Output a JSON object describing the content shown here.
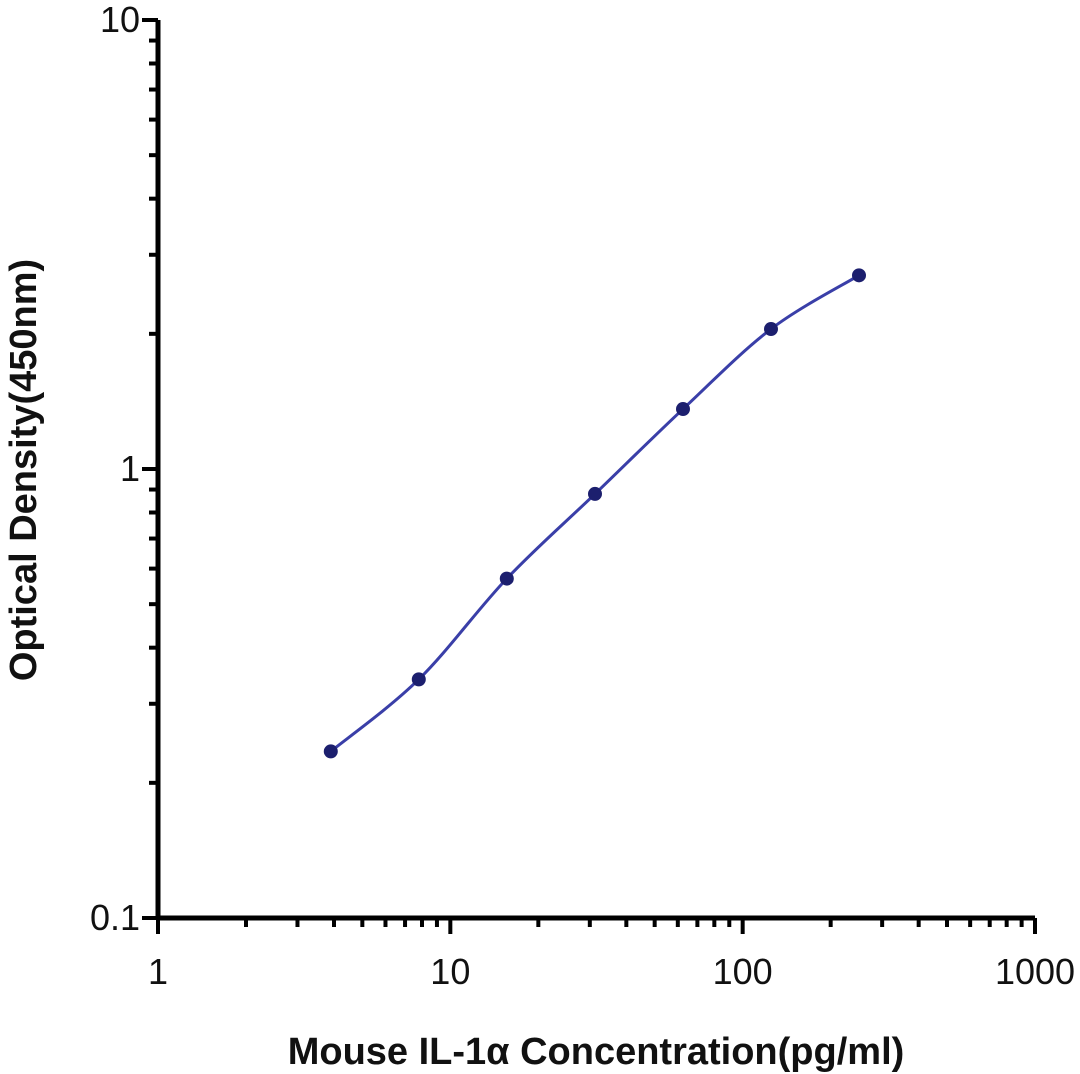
{
  "chart_data": {
    "type": "line",
    "title": "",
    "xlabel": "Mouse IL-1α Concentration(pg/ml)",
    "ylabel": "Optical Density(450nm)",
    "x_scale": "log",
    "y_scale": "log",
    "xlim": [
      1,
      1000
    ],
    "ylim": [
      0.1,
      10
    ],
    "x_ticks": [
      "1",
      "10",
      "100",
      "1000"
    ],
    "y_ticks": [
      "0.1",
      "1",
      "10"
    ],
    "grid": false,
    "legend": "none",
    "series": [
      {
        "color": "#3a3fa8",
        "x": [
          3.9,
          7.8,
          15.6,
          31.25,
          62.5,
          125,
          250
        ],
        "y": [
          0.235,
          0.34,
          0.57,
          0.88,
          1.36,
          2.05,
          2.7
        ]
      }
    ]
  }
}
